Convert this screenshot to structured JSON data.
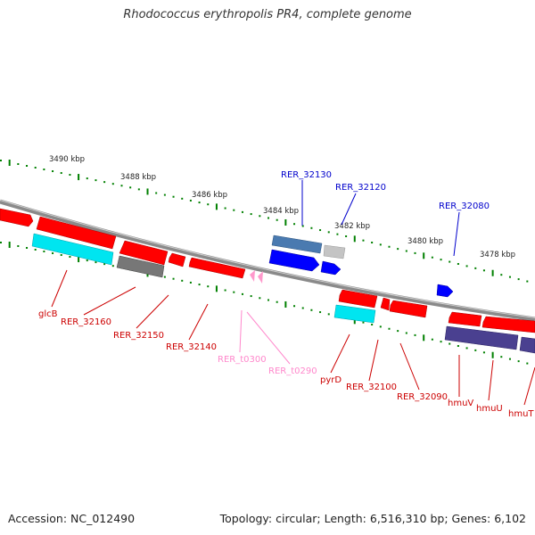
{
  "title": "Rhodococcus erythropolis PR4, complete genome",
  "footer": {
    "accession": "Accession: NC_012490",
    "topology": "Topology: circular; Length: 6,516,310 bp; Genes: 6,102"
  },
  "kbp_labels": [
    "3490 kbp",
    "3488 kbp",
    "3486 kbp",
    "3484 kbp",
    "3482 kbp",
    "3480 kbp",
    "3478 kbp"
  ],
  "gene_labels": {
    "above": [
      "RER_32130",
      "RER_32120",
      "RER_32080"
    ],
    "below": [
      "glcB",
      "RER_32160",
      "RER_32150",
      "RER_32140",
      "RER_t0300",
      "RER_t0290",
      "pyrD",
      "RER_32100",
      "RER_32090",
      "hmuV",
      "hmuU",
      "hmuT"
    ]
  },
  "colors": {
    "cds": "#ff0000",
    "trna": "#ff80c0",
    "cyan": "#00e5f0",
    "gray": "#777777",
    "navy": "#4a4090",
    "blue": "#0000ff",
    "steel": "#4a7ab0",
    "light_gray": "#c4c4c4",
    "label_red": "#cc0000",
    "label_blue": "#0000cc",
    "label_pink": "#ff88cc",
    "tick_green": "#008000",
    "backbone": "#8a8a8a"
  }
}
